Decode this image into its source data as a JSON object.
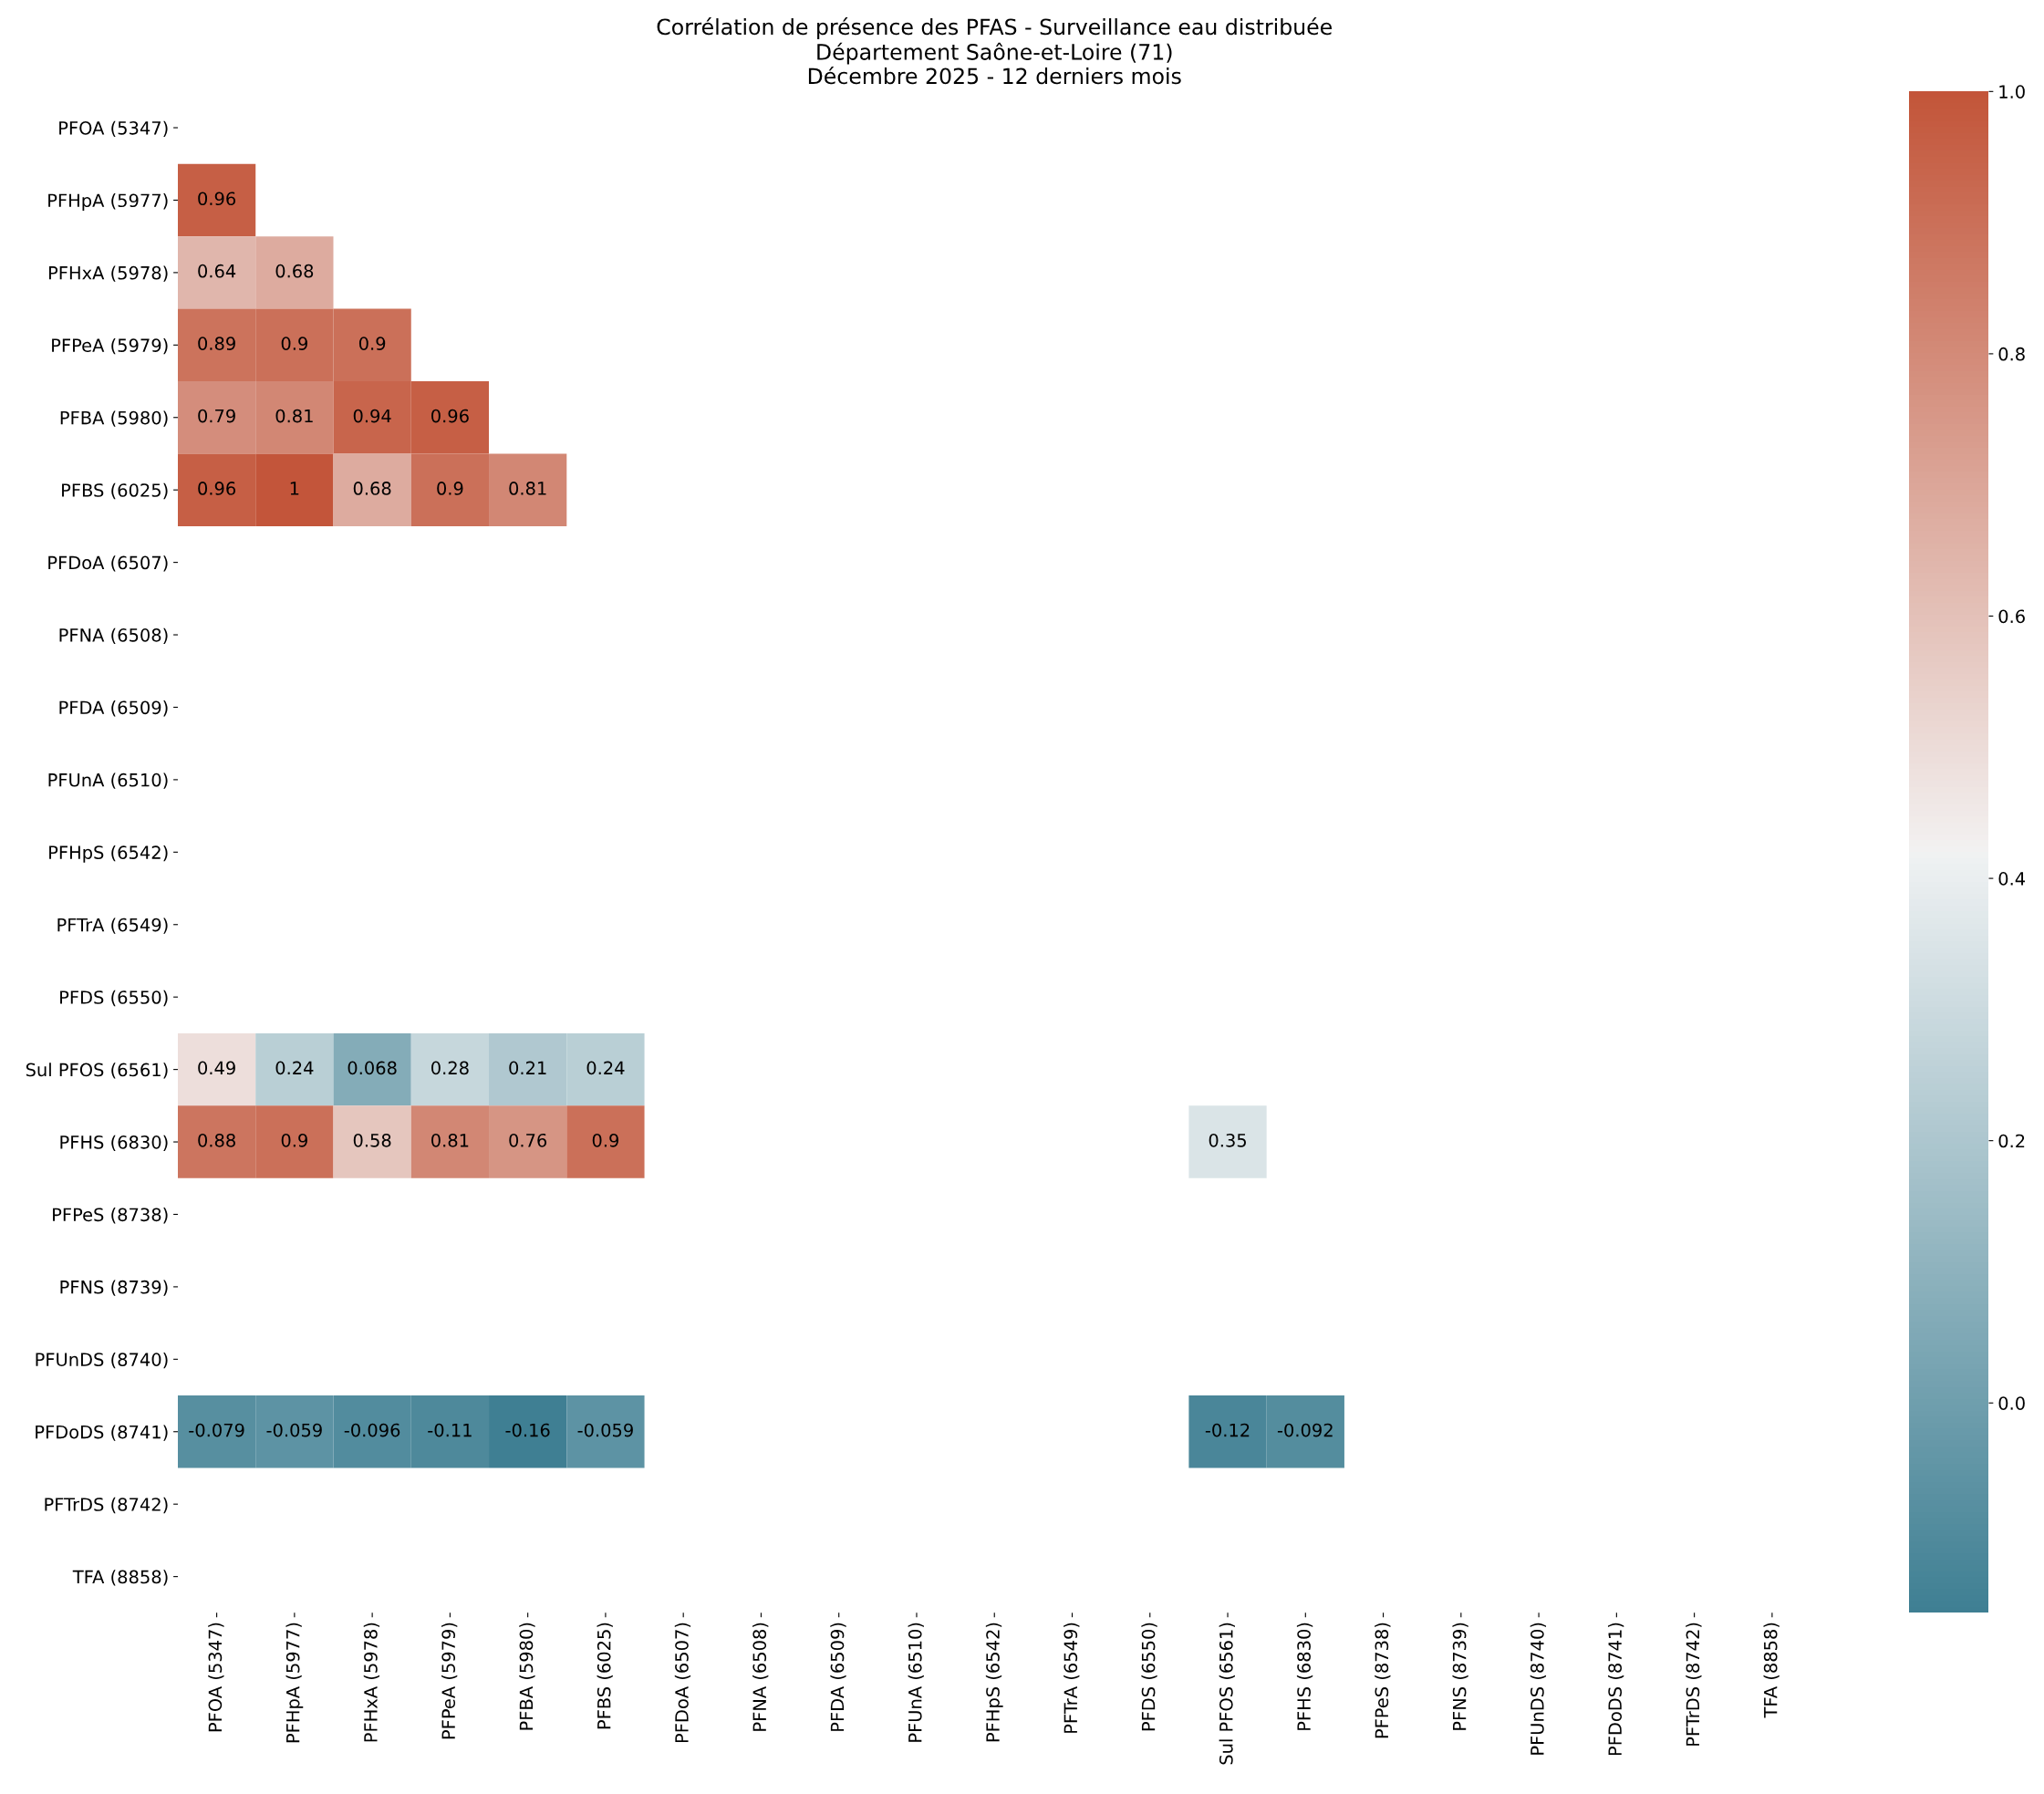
{
  "chart_data": {
    "type": "heatmap",
    "title": "Corrélation de présence des PFAS - Surveillance eau distribuée\nDépartement Saône-et-Loire (71)\nDécembre 2025 - 12 derniers mois",
    "categories": [
      "PFOA (5347)",
      "PFHpA (5977)",
      "PFHxA (5978)",
      "PFPeA (5979)",
      "PFBA (5980)",
      "PFBS (6025)",
      "PFDoA (6507)",
      "PFNA (6508)",
      "PFDA (6509)",
      "PFUnA (6510)",
      "PFHpS (6542)",
      "PFTrA (6549)",
      "PFDS (6550)",
      "Sul PFOS (6561)",
      "PFHS (6830)",
      "PFPeS (8738)",
      "PFNS (8739)",
      "PFUnDS (8740)",
      "PFDoDS (8741)",
      "PFTrDS (8742)",
      "TFA (8858)"
    ],
    "y_categories": [
      "PFOA (5347)",
      "PFHpA (5977)",
      "PFHxA (5978)",
      "PFPeA (5979)",
      "PFBA (5980)",
      "PFBS (6025)",
      "PFDoA (6507)",
      "PFNA (6508)",
      "PFDA (6509)",
      "PFUnA (6510)",
      "PFHpS (6542)",
      "PFTrA (6549)",
      "PFDS (6550)",
      "Sul PFOS (6561)",
      "PFHS (6830)",
      "PFPeS (8738)",
      "PFNS (8739)",
      "PFUnDS (8740)",
      "PFDoDS (8741)",
      "PFTrDS (8742)",
      "TFA (8858)"
    ],
    "cells": [
      [
        null,
        null,
        null,
        null,
        null,
        null,
        null,
        null,
        null,
        null,
        null,
        null,
        null,
        null,
        null,
        null,
        null,
        null,
        null,
        null,
        null
      ],
      [
        0.96,
        null,
        null,
        null,
        null,
        null,
        null,
        null,
        null,
        null,
        null,
        null,
        null,
        null,
        null,
        null,
        null,
        null,
        null,
        null,
        null
      ],
      [
        0.64,
        0.68,
        null,
        null,
        null,
        null,
        null,
        null,
        null,
        null,
        null,
        null,
        null,
        null,
        null,
        null,
        null,
        null,
        null,
        null,
        null
      ],
      [
        0.89,
        0.9,
        0.9,
        null,
        null,
        null,
        null,
        null,
        null,
        null,
        null,
        null,
        null,
        null,
        null,
        null,
        null,
        null,
        null,
        null,
        null
      ],
      [
        0.79,
        0.81,
        0.94,
        0.96,
        null,
        null,
        null,
        null,
        null,
        null,
        null,
        null,
        null,
        null,
        null,
        null,
        null,
        null,
        null,
        null,
        null
      ],
      [
        0.96,
        1,
        0.68,
        0.9,
        0.81,
        null,
        null,
        null,
        null,
        null,
        null,
        null,
        null,
        null,
        null,
        null,
        null,
        null,
        null,
        null,
        null
      ],
      [
        null,
        null,
        null,
        null,
        null,
        null,
        null,
        null,
        null,
        null,
        null,
        null,
        null,
        null,
        null,
        null,
        null,
        null,
        null,
        null,
        null
      ],
      [
        null,
        null,
        null,
        null,
        null,
        null,
        null,
        null,
        null,
        null,
        null,
        null,
        null,
        null,
        null,
        null,
        null,
        null,
        null,
        null,
        null
      ],
      [
        null,
        null,
        null,
        null,
        null,
        null,
        null,
        null,
        null,
        null,
        null,
        null,
        null,
        null,
        null,
        null,
        null,
        null,
        null,
        null,
        null
      ],
      [
        null,
        null,
        null,
        null,
        null,
        null,
        null,
        null,
        null,
        null,
        null,
        null,
        null,
        null,
        null,
        null,
        null,
        null,
        null,
        null,
        null
      ],
      [
        null,
        null,
        null,
        null,
        null,
        null,
        null,
        null,
        null,
        null,
        null,
        null,
        null,
        null,
        null,
        null,
        null,
        null,
        null,
        null,
        null
      ],
      [
        null,
        null,
        null,
        null,
        null,
        null,
        null,
        null,
        null,
        null,
        null,
        null,
        null,
        null,
        null,
        null,
        null,
        null,
        null,
        null,
        null
      ],
      [
        null,
        null,
        null,
        null,
        null,
        null,
        null,
        null,
        null,
        null,
        null,
        null,
        null,
        null,
        null,
        null,
        null,
        null,
        null,
        null,
        null
      ],
      [
        0.49,
        0.24,
        0.068,
        0.28,
        0.21,
        0.24,
        null,
        null,
        null,
        null,
        null,
        null,
        null,
        null,
        null,
        null,
        null,
        null,
        null,
        null,
        null
      ],
      [
        0.88,
        0.9,
        0.58,
        0.81,
        0.76,
        0.9,
        null,
        null,
        null,
        null,
        null,
        null,
        null,
        0.35,
        null,
        null,
        null,
        null,
        null,
        null,
        null
      ],
      [
        null,
        null,
        null,
        null,
        null,
        null,
        null,
        null,
        null,
        null,
        null,
        null,
        null,
        null,
        null,
        null,
        null,
        null,
        null,
        null,
        null
      ],
      [
        null,
        null,
        null,
        null,
        null,
        null,
        null,
        null,
        null,
        null,
        null,
        null,
        null,
        null,
        null,
        null,
        null,
        null,
        null,
        null,
        null
      ],
      [
        null,
        null,
        null,
        null,
        null,
        null,
        null,
        null,
        null,
        null,
        null,
        null,
        null,
        null,
        null,
        null,
        null,
        null,
        null,
        null,
        null
      ],
      [
        -0.079,
        -0.059,
        -0.096,
        -0.11,
        -0.16,
        -0.059,
        null,
        null,
        null,
        null,
        null,
        null,
        null,
        -0.12,
        -0.092,
        null,
        null,
        null,
        null,
        null,
        null
      ],
      [
        null,
        null,
        null,
        null,
        null,
        null,
        null,
        null,
        null,
        null,
        null,
        null,
        null,
        null,
        null,
        null,
        null,
        null,
        null,
        null,
        null
      ],
      [
        null,
        null,
        null,
        null,
        null,
        null,
        null,
        null,
        null,
        null,
        null,
        null,
        null,
        null,
        null,
        null,
        null,
        null,
        null,
        null,
        null
      ]
    ],
    "data_labels": true,
    "clim": [
      -0.16,
      1.0
    ],
    "cticks": [
      {
        "value": 0.0,
        "label": "0.0"
      },
      0.2,
      0.4,
      0.6,
      0.8,
      {
        "value": 1.0,
        "label": "1.0"
      }
    ]
  }
}
